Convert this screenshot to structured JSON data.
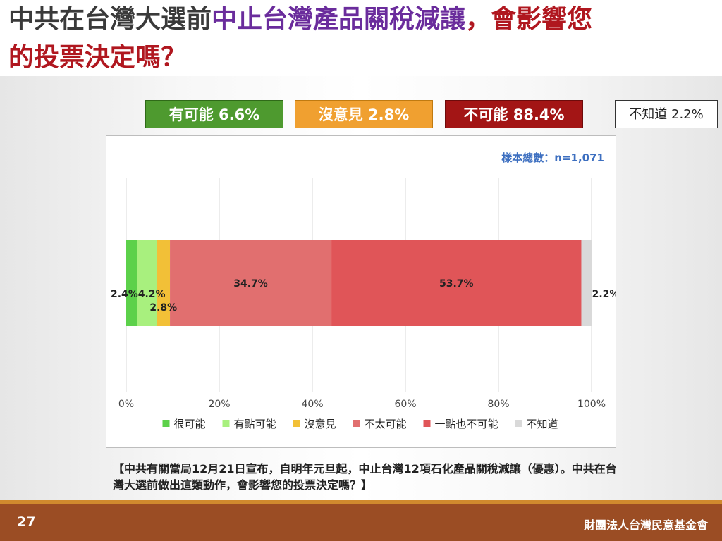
{
  "title": {
    "part1": "中共在台灣大選前",
    "part2": "中止台灣產品關稅減讓",
    "part3": "，會影響您",
    "line2": "的投票決定嗎？"
  },
  "summary": {
    "possible": "有可能 6.6%",
    "no_opinion": "沒意見 2.8%",
    "not_possible": "不可能 88.4%",
    "dont_know": "不知道 2.2%"
  },
  "sample_note": "樣本總數：n=1,071",
  "question": "【中共有關當局12月21日宣布，自明年元旦起，中止台灣12項石化產品關稅減讓（優惠）。中共在台灣大選前做出這類動作，會影響您的投票決定嗎？】",
  "footer": {
    "page_number": "27",
    "org": "財團法人台灣民意基金會"
  },
  "colors": {
    "very_possible": "#5cd14a",
    "somewhat_possible": "#a8f07e",
    "no_opinion": "#f2c037",
    "not_very_possible": "#e16f6f",
    "not_at_all_possible": "#e05558",
    "dont_know": "#d9d9d9"
  },
  "chart_data": {
    "type": "bar",
    "orientation": "horizontal",
    "stacked": true,
    "xlim": [
      0,
      100
    ],
    "x_ticks": [
      "0%",
      "20%",
      "40%",
      "60%",
      "80%",
      "100%"
    ],
    "grid": true,
    "legend_position": "bottom",
    "series": [
      {
        "name": "很可能",
        "value": 2.4,
        "label": "2.4%",
        "color": "#5cd14a"
      },
      {
        "name": "有點可能",
        "value": 4.2,
        "label": "4.2%",
        "color": "#a8f07e"
      },
      {
        "name": "沒意見",
        "value": 2.8,
        "label": "2.8%",
        "color": "#f2c037"
      },
      {
        "name": "不太可能",
        "value": 34.7,
        "label": "34.7%",
        "color": "#e16f6f"
      },
      {
        "name": "一點也不可能",
        "value": 53.7,
        "label": "53.7%",
        "color": "#e05558"
      },
      {
        "name": "不知道",
        "value": 2.2,
        "label": "2.2%",
        "color": "#d9d9d9"
      }
    ]
  }
}
